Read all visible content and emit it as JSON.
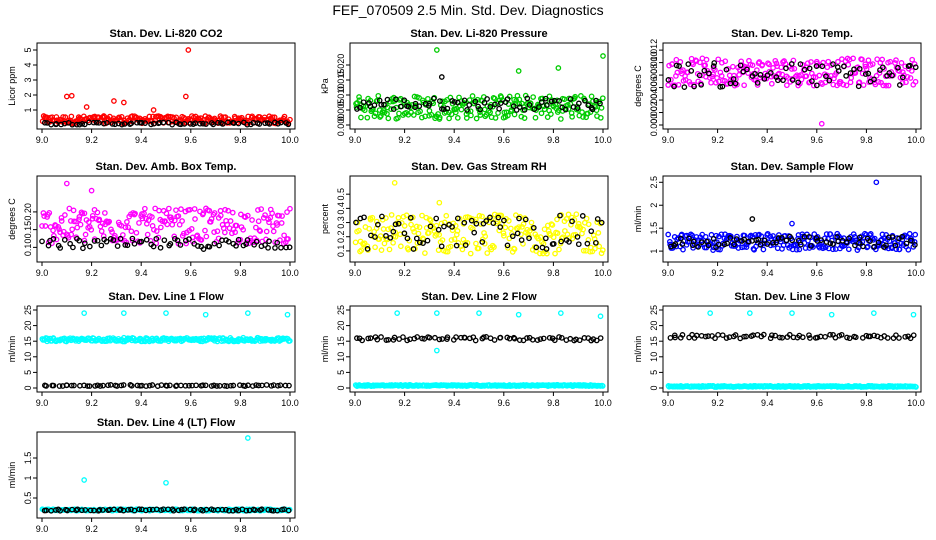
{
  "page_title": "FEF_070509  2.5 Min. Std. Dev. Diagnostics",
  "chart_data": [
    {
      "type": "scatter",
      "title": "Stan. Dev. Li-820 CO2",
      "ylabel": "Licor ppm",
      "xlim": [
        9.0,
        10.0
      ],
      "ylim": [
        0,
        5.2
      ],
      "xticks": [
        9.0,
        9.2,
        9.4,
        9.6,
        9.8,
        10.0
      ],
      "yticks": [
        1,
        2,
        3,
        4,
        5
      ],
      "series": [
        {
          "name": "red",
          "color": "#ff0000",
          "base": 0.35,
          "spread": 0.25,
          "outliers": [
            [
              9.1,
              1.9
            ],
            [
              9.12,
              1.95
            ],
            [
              9.29,
              1.6
            ],
            [
              9.33,
              1.5
            ],
            [
              9.59,
              5.0
            ],
            [
              9.58,
              1.9
            ],
            [
              9.18,
              1.2
            ],
            [
              9.45,
              1.0
            ]
          ]
        },
        {
          "name": "black",
          "color": "#000000",
          "base": 0.1,
          "spread": 0.08,
          "outliers": []
        }
      ]
    },
    {
      "type": "scatter",
      "title": "Stan. Dev. Li-820 Pressure",
      "ylabel": "kPa",
      "xlim": [
        9.0,
        10.0
      ],
      "ylim": [
        0,
        0.026
      ],
      "xticks": [
        9.0,
        9.2,
        9.4,
        9.6,
        9.8,
        10.0
      ],
      "yticks": [
        0.0,
        0.005,
        0.01,
        0.015,
        0.02
      ],
      "ytick_labels": [
        "0.000",
        "0.005",
        "0.010",
        "0.015",
        "0.020"
      ],
      "series": [
        {
          "name": "green",
          "color": "#00cc00",
          "base": 0.006,
          "spread": 0.004,
          "outliers": [
            [
              9.33,
              0.025
            ],
            [
              9.66,
              0.018
            ],
            [
              9.82,
              0.019
            ],
            [
              10.0,
              0.023
            ]
          ]
        },
        {
          "name": "black",
          "color": "#000000",
          "base": 0.007,
          "spread": 0.002,
          "outliers": [
            [
              9.35,
              0.016
            ]
          ]
        }
      ]
    },
    {
      "type": "scatter",
      "title": "Stan. Dev. Li-820 Temp.",
      "ylabel": "degrees C",
      "xlim": [
        9.0,
        10.0
      ],
      "ylim": [
        0,
        0.0125
      ],
      "xticks": [
        9.0,
        9.2,
        9.4,
        9.6,
        9.8,
        10.0
      ],
      "yticks": [
        0.0,
        0.002,
        0.004,
        0.006,
        0.008,
        0.01,
        0.012
      ],
      "ytick_labels": [
        "0.000",
        "0.002",
        "0.004",
        "0.006",
        "0.008",
        "0.010",
        "0.012"
      ],
      "series": [
        {
          "name": "magenta",
          "color": "#ff00ff",
          "base": 0.0085,
          "spread": 0.0022,
          "outliers": [
            [
              9.62,
              0.0002
            ]
          ]
        },
        {
          "name": "black",
          "color": "#000000",
          "base": 0.008,
          "spread": 0.002,
          "outliers": []
        }
      ]
    },
    {
      "type": "scatter",
      "title": "Stan. Dev. Amb. Box Temp.",
      "ylabel": "degrees C",
      "xlim": [
        9.0,
        10.0
      ],
      "ylim": [
        0.07,
        0.29
      ],
      "xticks": [
        9.0,
        9.2,
        9.4,
        9.6,
        9.8,
        10.0
      ],
      "yticks": [
        0.1,
        0.15,
        0.2
      ],
      "ytick_labels": [
        "0.10",
        "0.15",
        "0.20"
      ],
      "series": [
        {
          "name": "magenta",
          "color": "#ff00ff",
          "base": 0.16,
          "spread": 0.05,
          "outliers": [
            [
              9.1,
              0.28
            ],
            [
              9.2,
              0.26
            ]
          ]
        },
        {
          "name": "black",
          "color": "#000000",
          "base": 0.11,
          "spread": 0.015,
          "outliers": []
        }
      ]
    },
    {
      "type": "scatter",
      "title": "Stan. Dev. Gas Stream RH",
      "ylabel": "percent",
      "xlim": [
        9.0,
        10.0
      ],
      "ylim": [
        0.05,
        0.6
      ],
      "xticks": [
        9.0,
        9.2,
        9.4,
        9.6,
        9.8,
        10.0
      ],
      "yticks": [
        0.1,
        0.2,
        0.3,
        0.4,
        0.5
      ],
      "series": [
        {
          "name": "yellow",
          "color": "#ffff00",
          "base": 0.22,
          "spread": 0.14,
          "outliers": [
            [
              9.16,
              0.58
            ],
            [
              9.34,
              0.44
            ]
          ]
        },
        {
          "name": "black",
          "color": "#000000",
          "base": 0.23,
          "spread": 0.12,
          "outliers": []
        }
      ]
    },
    {
      "type": "scatter",
      "title": "Stan. Dev. Sample Flow",
      "ylabel": "ml/min",
      "xlim": [
        9.0,
        10.0
      ],
      "ylim": [
        0.85,
        2.55
      ],
      "xticks": [
        9.0,
        9.2,
        9.4,
        9.6,
        9.8,
        10.0
      ],
      "yticks": [
        1.0,
        1.5,
        2.0,
        2.5
      ],
      "series": [
        {
          "name": "blue",
          "color": "#0000ff",
          "base": 1.2,
          "spread": 0.18,
          "outliers": [
            [
              9.84,
              2.5
            ],
            [
              9.5,
              1.6
            ]
          ]
        },
        {
          "name": "black",
          "color": "#000000",
          "base": 1.2,
          "spread": 0.12,
          "outliers": [
            [
              9.34,
              1.7
            ]
          ]
        }
      ]
    },
    {
      "type": "scatter",
      "title": "Stan. Dev. Line 1 Flow",
      "ylabel": "ml/min",
      "xlim": [
        9.0,
        10.0
      ],
      "ylim": [
        0,
        25
      ],
      "xticks": [
        9.0,
        9.2,
        9.4,
        9.6,
        9.8,
        10.0
      ],
      "yticks": [
        0,
        5,
        10,
        15,
        20,
        25
      ],
      "series": [
        {
          "name": "cyan",
          "color": "#00ffff",
          "base": 15.5,
          "spread": 0.6,
          "outliers": [
            [
              9.17,
              24
            ],
            [
              9.33,
              24
            ],
            [
              9.5,
              24
            ],
            [
              9.66,
              23.5
            ],
            [
              9.83,
              24
            ],
            [
              9.99,
              23.5
            ]
          ]
        },
        {
          "name": "black",
          "color": "#000000",
          "base": 0.8,
          "spread": 0.2,
          "outliers": []
        }
      ]
    },
    {
      "type": "scatter",
      "title": "Stan. Dev. Line 2 Flow",
      "ylabel": "ml/min",
      "xlim": [
        9.0,
        10.0
      ],
      "ylim": [
        0,
        25
      ],
      "xticks": [
        9.0,
        9.2,
        9.4,
        9.6,
        9.8,
        10.0
      ],
      "yticks": [
        0,
        5,
        10,
        15,
        20,
        25
      ],
      "series": [
        {
          "name": "cyan",
          "color": "#00ffff",
          "base": 0.8,
          "spread": 0.2,
          "outliers": [
            [
              9.17,
              24
            ],
            [
              9.33,
              24
            ],
            [
              9.5,
              24
            ],
            [
              9.66,
              23.5
            ],
            [
              9.83,
              24
            ],
            [
              9.99,
              23
            ],
            [
              9.33,
              12
            ]
          ]
        },
        {
          "name": "black",
          "color": "#000000",
          "base": 15.8,
          "spread": 0.6,
          "outliers": []
        }
      ]
    },
    {
      "type": "scatter",
      "title": "Stan. Dev. Line 3 Flow",
      "ylabel": "ml/min",
      "xlim": [
        9.0,
        10.0
      ],
      "ylim": [
        0,
        25
      ],
      "xticks": [
        9.0,
        9.2,
        9.4,
        9.6,
        9.8,
        10.0
      ],
      "yticks": [
        0,
        5,
        10,
        15,
        20,
        25
      ],
      "series": [
        {
          "name": "cyan",
          "color": "#00ffff",
          "base": 0.5,
          "spread": 0.2,
          "outliers": [
            [
              9.17,
              24
            ],
            [
              9.33,
              24
            ],
            [
              9.5,
              24
            ],
            [
              9.66,
              23.5
            ],
            [
              9.83,
              24
            ],
            [
              9.99,
              23.5
            ]
          ]
        },
        {
          "name": "black",
          "color": "#000000",
          "base": 16.5,
          "spread": 0.6,
          "outliers": []
        }
      ]
    },
    {
      "type": "scatter",
      "title": "Stan. Dev. Line 4 (LT) Flow",
      "ylabel": "ml/min",
      "xlim": [
        9.0,
        10.0
      ],
      "ylim": [
        0.1,
        2.05
      ],
      "xticks": [
        9.0,
        9.2,
        9.4,
        9.6,
        9.8,
        10.0
      ],
      "yticks": [
        0.5,
        1.0,
        1.5
      ],
      "series": [
        {
          "name": "cyan",
          "color": "#00ffff",
          "base": 0.2,
          "spread": 0.02,
          "outliers": [
            [
              9.17,
              0.95
            ],
            [
              9.5,
              0.88
            ],
            [
              9.83,
              2.0
            ]
          ]
        },
        {
          "name": "black",
          "color": "#000000",
          "base": 0.2,
          "spread": 0.02,
          "outliers": []
        }
      ]
    }
  ]
}
